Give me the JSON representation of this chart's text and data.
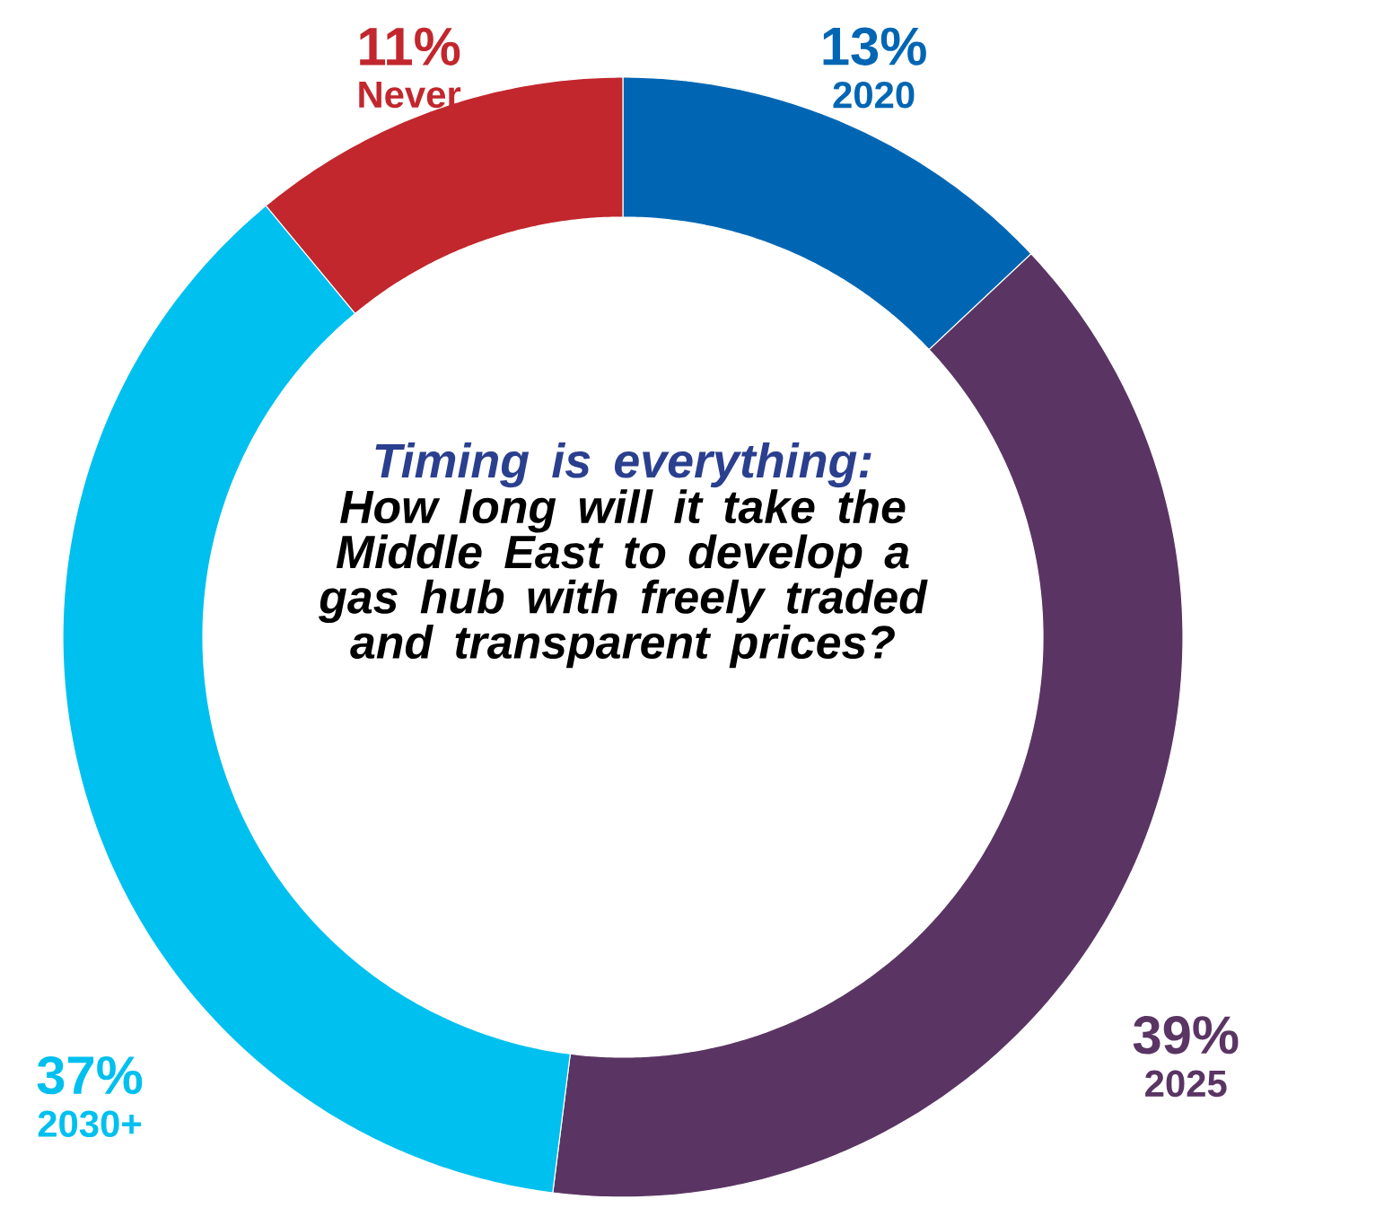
{
  "chart_data": {
    "type": "donut",
    "title": "Timing is everything:",
    "subtitle": "How long will it take the Middle East to develop a gas hub with freely traded and transparent prices?",
    "categories": [
      "2020",
      "2025",
      "2030+",
      "Never"
    ],
    "values": [
      13,
      39,
      37,
      11
    ],
    "value_labels": [
      "13%",
      "39%",
      "37%",
      "11%"
    ],
    "colors": [
      "#0066b3",
      "#5a3563",
      "#00c0ef",
      "#c1272d"
    ]
  }
}
